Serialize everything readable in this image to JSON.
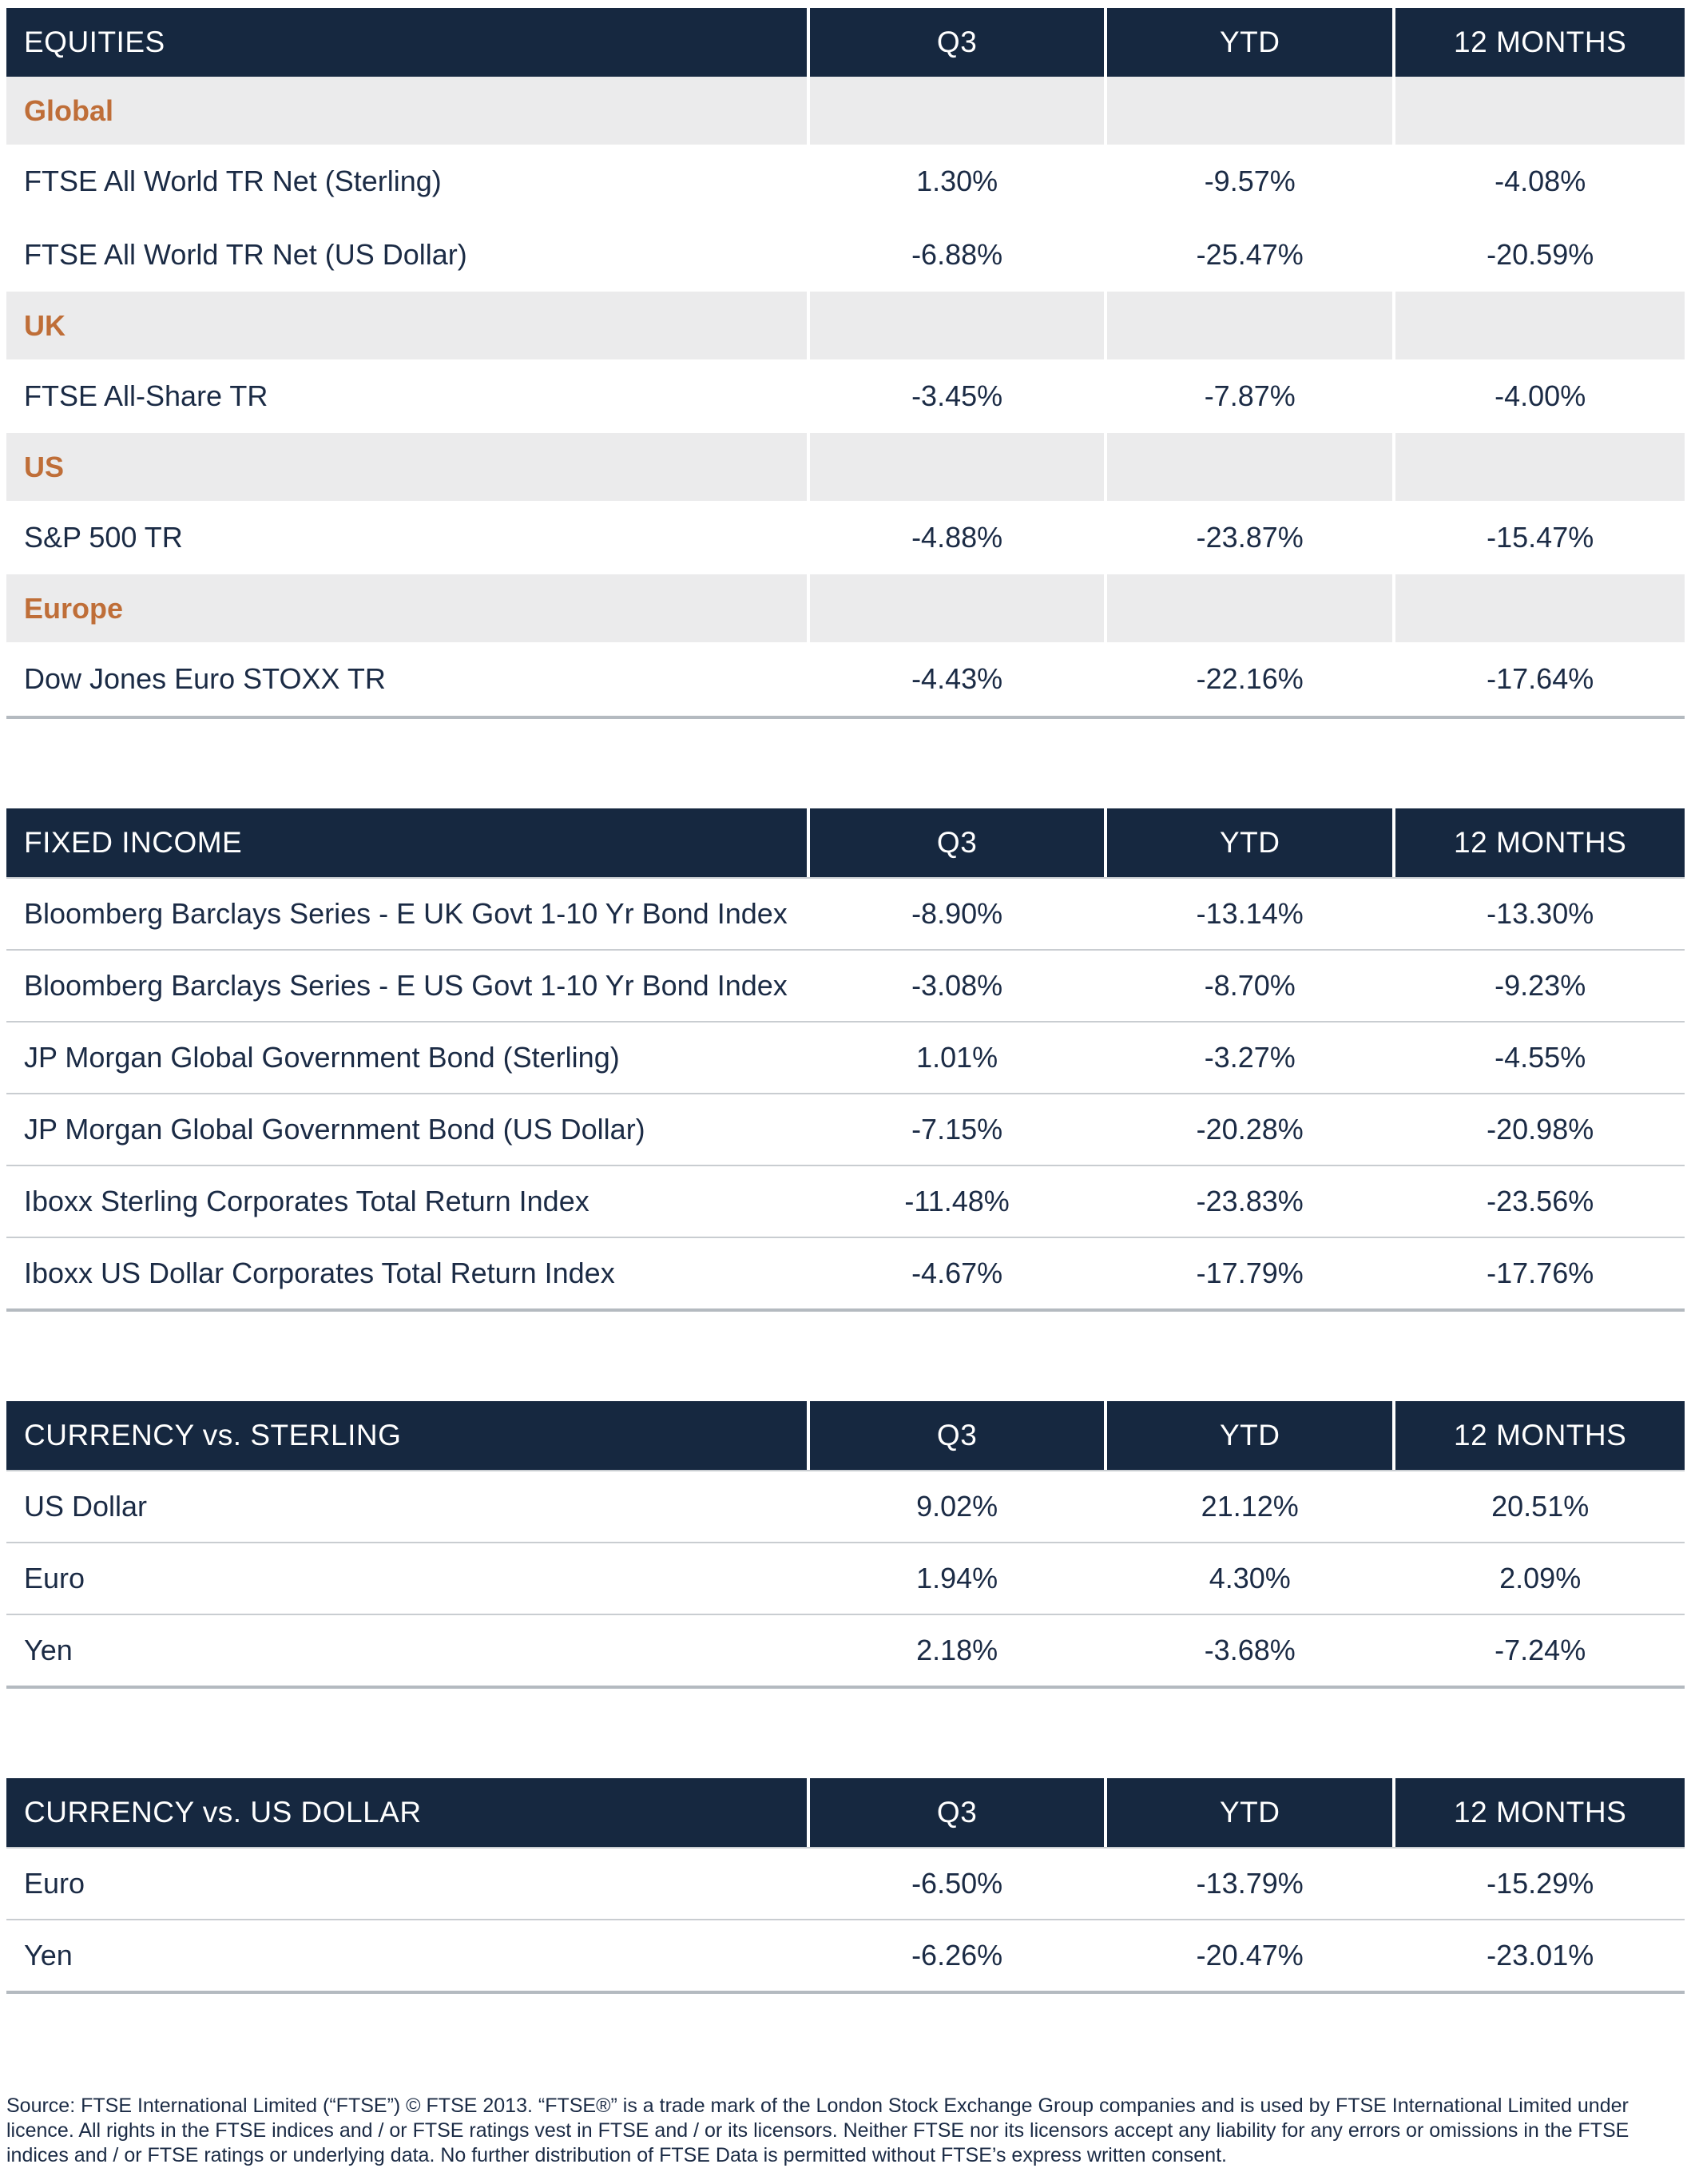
{
  "colors": {
    "header_background": "#162840",
    "header_text": "#FFFFFF",
    "section_label": "#BF6E38",
    "section_background": "#EBEBEC",
    "body_text": "#1B2B45",
    "row_divider": "#C9CDD1",
    "table_bottom_border": "#B4BAC0"
  },
  "tables": [
    {
      "id": "equities",
      "header": {
        "label": "EQUITIES",
        "columns": [
          "Q3",
          "YTD",
          "12 MONTHS"
        ]
      },
      "rows": [
        {
          "type": "section",
          "label": "Global"
        },
        {
          "type": "data",
          "label": "FTSE All World TR Net (Sterling)",
          "values": [
            "1.30%",
            "-9.57%",
            "-4.08%"
          ]
        },
        {
          "type": "data",
          "label": "FTSE All World TR Net (US Dollar)",
          "values": [
            "-6.88%",
            "-25.47%",
            "-20.59%"
          ]
        },
        {
          "type": "section",
          "label": "UK"
        },
        {
          "type": "data",
          "label": "FTSE All-Share TR",
          "values": [
            "-3.45%",
            "-7.87%",
            "-4.00%"
          ]
        },
        {
          "type": "section",
          "label": "US"
        },
        {
          "type": "data",
          "label": "S&P 500 TR",
          "values": [
            "-4.88%",
            "-23.87%",
            "-15.47%"
          ]
        },
        {
          "type": "section",
          "label": "Europe"
        },
        {
          "type": "data",
          "label": "Dow Jones Euro STOXX TR",
          "values": [
            "-4.43%",
            "-22.16%",
            "-17.64%"
          ]
        }
      ]
    },
    {
      "id": "fixed-income",
      "header": {
        "label": "FIXED INCOME",
        "columns": [
          "Q3",
          "YTD",
          "12 MONTHS"
        ]
      },
      "rows": [
        {
          "type": "data",
          "label": "Bloomberg Barclays Series - E UK Govt 1-10 Yr Bond Index",
          "values": [
            "-8.90%",
            "-13.14%",
            "-13.30%"
          ]
        },
        {
          "type": "data",
          "label": "Bloomberg Barclays Series - E US Govt 1-10 Yr Bond Index",
          "values": [
            "-3.08%",
            "-8.70%",
            "-9.23%"
          ]
        },
        {
          "type": "data",
          "label": "JP Morgan Global Government Bond (Sterling)",
          "values": [
            "1.01%",
            "-3.27%",
            "-4.55%"
          ]
        },
        {
          "type": "data",
          "label": "JP Morgan Global Government Bond (US Dollar)",
          "values": [
            "-7.15%",
            "-20.28%",
            "-20.98%"
          ]
        },
        {
          "type": "data",
          "label": "Iboxx Sterling Corporates Total Return Index",
          "values": [
            "-11.48%",
            "-23.83%",
            "-23.56%"
          ]
        },
        {
          "type": "data",
          "label": "Iboxx US Dollar Corporates Total Return Index",
          "values": [
            "-4.67%",
            "-17.79%",
            "-17.76%"
          ]
        }
      ]
    },
    {
      "id": "currency-vs-sterling",
      "header": {
        "label": "CURRENCY vs. STERLING",
        "columns": [
          "Q3",
          "YTD",
          "12 MONTHS"
        ]
      },
      "rows": [
        {
          "type": "data",
          "label": "US Dollar",
          "values": [
            "9.02%",
            "21.12%",
            "20.51%"
          ]
        },
        {
          "type": "data",
          "label": "Euro",
          "values": [
            "1.94%",
            "4.30%",
            "2.09%"
          ]
        },
        {
          "type": "data",
          "label": "Yen",
          "values": [
            "2.18%",
            "-3.68%",
            "-7.24%"
          ]
        }
      ]
    },
    {
      "id": "currency-vs-us-dollar",
      "header": {
        "label": "CURRENCY vs. US DOLLAR",
        "columns": [
          "Q3",
          "YTD",
          "12 MONTHS"
        ]
      },
      "rows": [
        {
          "type": "data",
          "label": "Euro",
          "values": [
            "-6.50%",
            "-13.79%",
            "-15.29%"
          ]
        },
        {
          "type": "data",
          "label": "Yen",
          "values": [
            "-6.26%",
            "-20.47%",
            "-23.01%"
          ]
        }
      ]
    }
  ],
  "footer": {
    "text": "Source: FTSE International Limited (“FTSE”) © FTSE 2013. “FTSE®” is a trade mark of the London Stock Exchange Group companies and is used by FTSE International Limited under licence. All rights in the FTSE indices and / or FTSE ratings vest in FTSE and / or its licensors. Neither FTSE nor its licensors accept any liability for any errors or omissions in the FTSE indices and / or FTSE ratings or underlying data. No further distribution of FTSE Data is permitted without FTSE’s express written consent."
  }
}
